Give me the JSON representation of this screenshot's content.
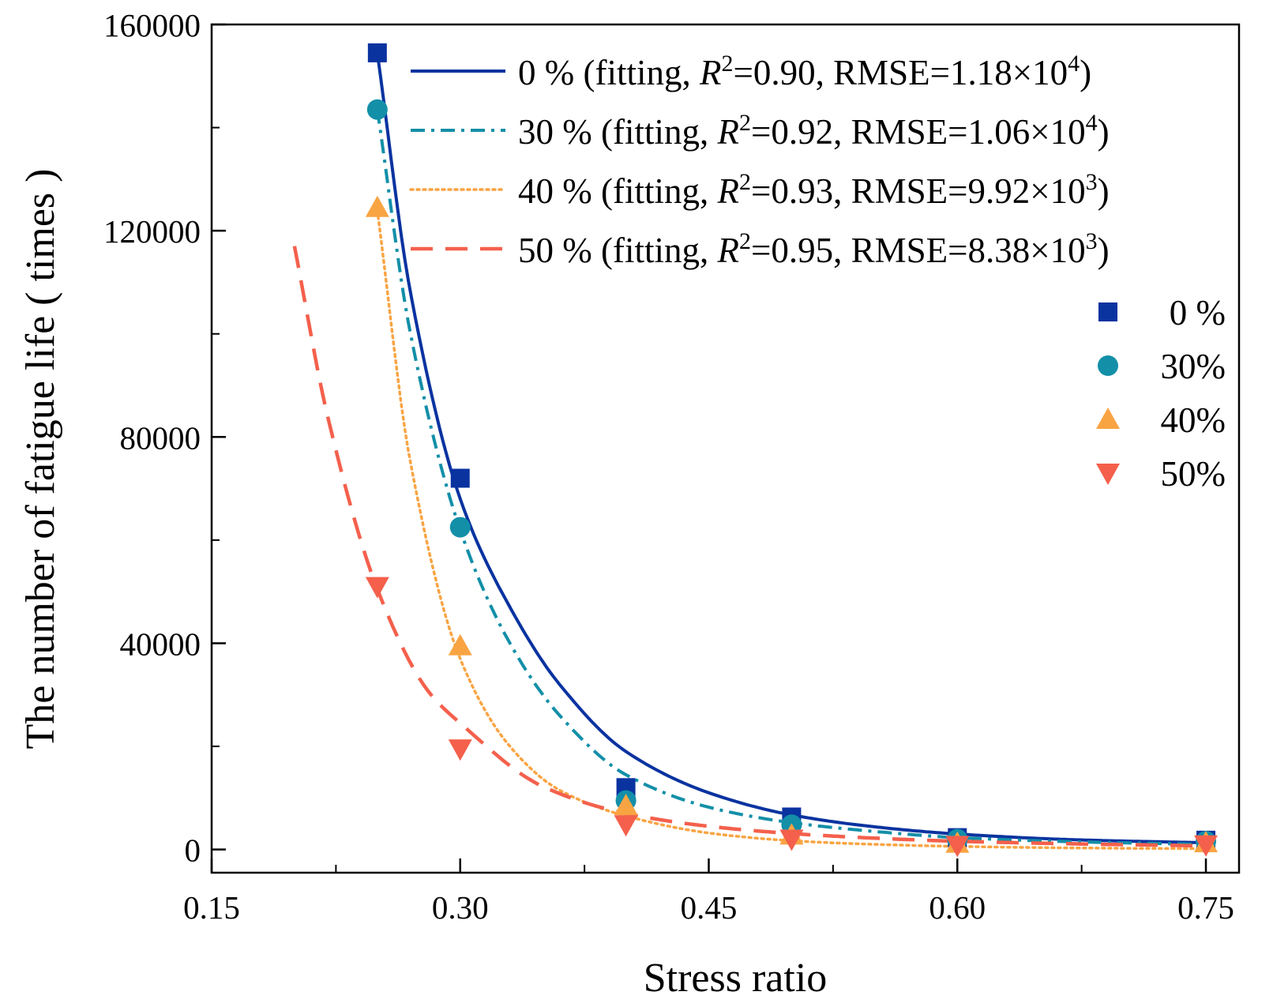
{
  "chart_data": {
    "type": "scatter",
    "xlabel": "Stress ratio",
    "ylabel": "The number of fatigue life ( times )",
    "xlim": [
      0.15,
      0.77
    ],
    "ylim": [
      -4500,
      160000
    ],
    "xticks": [
      "0.15",
      "0.30",
      "0.45",
      "0.60",
      "0.75"
    ],
    "xtick_values": [
      0.15,
      0.3,
      0.45,
      0.6,
      0.75
    ],
    "yticks": [
      "0",
      "40000",
      "80000",
      "120000",
      "160000"
    ],
    "ytick_values": [
      0,
      40000,
      80000,
      120000,
      160000
    ],
    "grid": false,
    "legend_position": "top-right",
    "fit_legend": [
      {
        "series": "0%",
        "label_pre": "0 % (fitting, ",
        "r_sym": "R",
        "r_exp": "2",
        "r_val": "=0.90, RMSE=1.18×10",
        "e_exp": "4",
        "close": ")",
        "color": "#0a33a0",
        "dash": "solid"
      },
      {
        "series": "30%",
        "label_pre": "30 % (fitting, ",
        "r_sym": "R",
        "r_exp": "2",
        "r_val": "=0.92, RMSE=1.06×10",
        "e_exp": "4",
        "close": ")",
        "color": "#138fa8",
        "dash": "dashdot"
      },
      {
        "series": "40%",
        "label_pre": "40 % (fitting, ",
        "r_sym": "R",
        "r_exp": "2",
        "r_val": "=0.93, RMSE=9.92×10",
        "e_exp": "3",
        "close": ")",
        "color": "#f9a443",
        "dash": "dotted"
      },
      {
        "series": "50%",
        "label_pre": "50 % (fitting, ",
        "r_sym": "R",
        "r_exp": "2",
        "r_val": "=0.95, RMSE=8.38×10",
        "e_exp": "3",
        "close": ")",
        "color": "#f4604c",
        "dash": "dashed"
      }
    ],
    "marker_legend": [
      {
        "label": "0 %",
        "marker": "square",
        "color": "#0a33a0"
      },
      {
        "label": "30%",
        "marker": "circle",
        "color": "#138fa8"
      },
      {
        "label": "40%",
        "marker": "triangle-up",
        "color": "#f9a443"
      },
      {
        "label": "50%",
        "marker": "triangle-down",
        "color": "#f4604c"
      }
    ],
    "series": [
      {
        "name": "0%",
        "marker": "square",
        "color": "#0a33a0",
        "x": [
          0.25,
          0.3,
          0.4,
          0.5,
          0.6,
          0.75
        ],
        "y": [
          154500,
          72000,
          12000,
          6300,
          2300,
          1800
        ]
      },
      {
        "name": "30%",
        "marker": "circle",
        "color": "#138fa8",
        "x": [
          0.25,
          0.3,
          0.4,
          0.5,
          0.6,
          0.75
        ],
        "y": [
          143500,
          62500,
          9500,
          4800,
          2000,
          1600
        ]
      },
      {
        "name": "40%",
        "marker": "triangle-up",
        "color": "#f9a443",
        "x": [
          0.25,
          0.3,
          0.4,
          0.5,
          0.6,
          0.75
        ],
        "y": [
          124500,
          39500,
          8500,
          2800,
          1200,
          1300
        ]
      },
      {
        "name": "50%",
        "marker": "triangle-down",
        "color": "#f4604c",
        "x": [
          0.25,
          0.3,
          0.4,
          0.5,
          0.6,
          0.75
        ],
        "y": [
          51000,
          19500,
          4800,
          2000,
          800,
          900
        ]
      }
    ],
    "fits": [
      {
        "name": "0%",
        "color": "#0a33a0",
        "dash": "solid",
        "x_start": 0.25,
        "x_end": 0.75,
        "x": [
          0.25,
          0.27,
          0.3,
          0.33,
          0.36,
          0.4,
          0.45,
          0.5,
          0.55,
          0.6,
          0.67,
          0.75
        ],
        "y": [
          154500,
          108000,
          68000,
          47000,
          32000,
          19000,
          11000,
          6700,
          4400,
          3000,
          1900,
          1300
        ]
      },
      {
        "name": "30%",
        "color": "#138fa8",
        "dash": "dashdot",
        "x_start": 0.25,
        "x_end": 0.75,
        "x": [
          0.25,
          0.27,
          0.3,
          0.33,
          0.36,
          0.4,
          0.45,
          0.5,
          0.55,
          0.6,
          0.67,
          0.75
        ],
        "y": [
          143500,
          100000,
          62000,
          40000,
          26000,
          14500,
          8200,
          5200,
          3500,
          2300,
          1500,
          1000
        ]
      },
      {
        "name": "40%",
        "color": "#f9a443",
        "dash": "dotted",
        "x_start": 0.25,
        "x_end": 0.75,
        "x": [
          0.25,
          0.27,
          0.3,
          0.33,
          0.36,
          0.4,
          0.45,
          0.5,
          0.55,
          0.6,
          0.67,
          0.75
        ],
        "y": [
          124000,
          75000,
          37000,
          20000,
          11500,
          6500,
          3200,
          1700,
          1000,
          600,
          300,
          150
        ]
      },
      {
        "name": "50%",
        "color": "#f4604c",
        "dash": "dashed",
        "x_start": 0.2,
        "x_end": 0.75,
        "x": [
          0.2,
          0.22,
          0.25,
          0.28,
          0.3,
          0.35,
          0.4,
          0.45,
          0.5,
          0.55,
          0.6,
          0.67,
          0.75
        ],
        "y": [
          117000,
          84000,
          50500,
          31000,
          24500,
          12200,
          7000,
          4500,
          3100,
          2200,
          1600,
          1100,
          700
        ]
      }
    ]
  }
}
